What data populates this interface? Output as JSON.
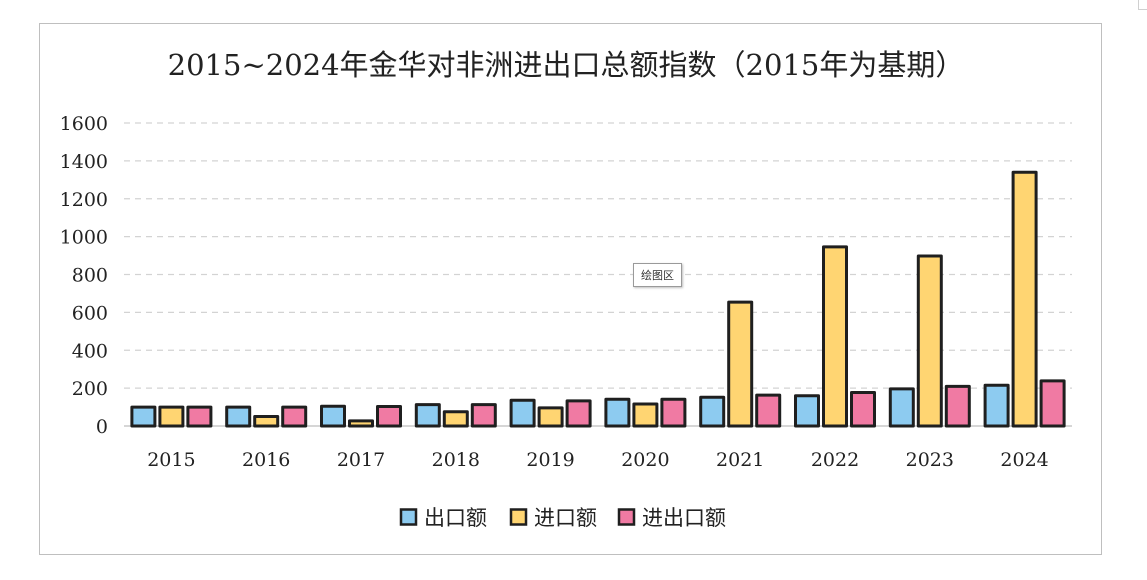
{
  "tooltip": {
    "text": "绘图区"
  },
  "chart_data": {
    "type": "bar",
    "title": "2015~2024年金华对非洲进出口总额指数（2015年为基期）",
    "xlabel": "",
    "ylabel": "",
    "ylim": [
      0,
      1600
    ],
    "yticks": [
      0,
      200,
      400,
      600,
      800,
      1000,
      1200,
      1400,
      1600
    ],
    "grid": true,
    "legend_position": "bottom",
    "categories": [
      "2015",
      "2016",
      "2017",
      "2018",
      "2019",
      "2020",
      "2021",
      "2022",
      "2023",
      "2024"
    ],
    "series": [
      {
        "name": "出口额",
        "color": "#8DCBF0",
        "values": [
          100,
          100,
          104,
          113,
          136,
          141,
          152,
          160,
          196,
          215
        ]
      },
      {
        "name": "进口额",
        "color": "#FFD572",
        "values": [
          100,
          50,
          27,
          75,
          96,
          116,
          654,
          946,
          898,
          1340
        ]
      },
      {
        "name": "进出口额",
        "color": "#F07AA3",
        "values": [
          100,
          100,
          103,
          113,
          133,
          141,
          163,
          177,
          209,
          238
        ]
      }
    ]
  }
}
